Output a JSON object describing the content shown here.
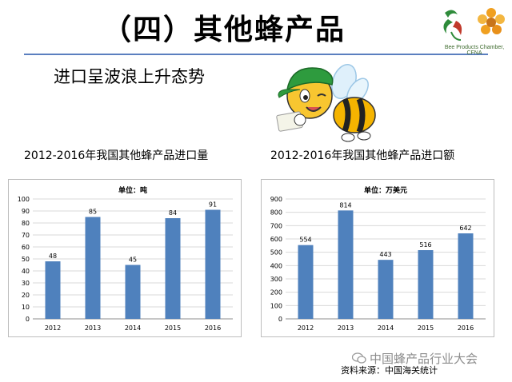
{
  "slide": {
    "title": "（四）其他蜂产品",
    "subtitle": "进口呈波浪上升态势",
    "logo_text": "Bee Products Chamber, CFNA",
    "source": "资料来源：中国海关统计",
    "watermark": "中国蜂产品行业大会"
  },
  "chart_data": [
    {
      "type": "bar",
      "title": "2012-2016年我国其他蜂产品进口量",
      "unit_label": "单位：吨",
      "categories": [
        "2012",
        "2013",
        "2014",
        "2015",
        "2016"
      ],
      "values": [
        48,
        85,
        45,
        84,
        91
      ],
      "ylim": [
        0,
        100
      ],
      "yticks": [
        "0",
        "10",
        "20",
        "30",
        "40",
        "50",
        "60",
        "70",
        "80",
        "90",
        "100"
      ],
      "color": "#4f81bd",
      "grid": true
    },
    {
      "type": "bar",
      "title": "2012-2016年我国其他蜂产品进口额",
      "unit_label": "单位：万美元",
      "categories": [
        "2012",
        "2013",
        "2014",
        "2015",
        "2016"
      ],
      "values": [
        554,
        814,
        443,
        516,
        642
      ],
      "ylim": [
        0,
        900
      ],
      "yticks": [
        "0",
        "100",
        "200",
        "300",
        "400",
        "500",
        "600",
        "700",
        "800",
        "900"
      ],
      "color": "#4f81bd",
      "grid": true
    }
  ]
}
